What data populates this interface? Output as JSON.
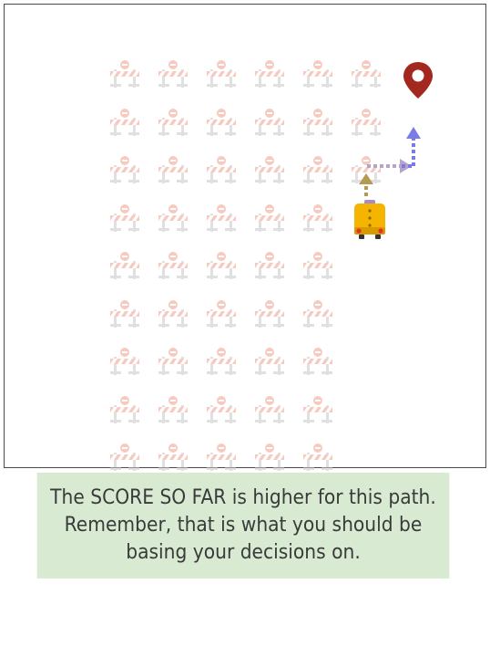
{
  "game": {
    "grid_columns": 6,
    "grid_rows": 9,
    "barrier_rows": [
      [
        1,
        1,
        1,
        1,
        1,
        1
      ],
      [
        1,
        1,
        1,
        1,
        1,
        1
      ],
      [
        1,
        1,
        1,
        1,
        1,
        1
      ],
      [
        1,
        1,
        1,
        1,
        1,
        0
      ],
      [
        1,
        1,
        1,
        1,
        1,
        0
      ],
      [
        1,
        1,
        1,
        1,
        1,
        0
      ],
      [
        1,
        1,
        1,
        1,
        1,
        0
      ],
      [
        1,
        1,
        1,
        1,
        1,
        0
      ],
      [
        1,
        1,
        1,
        1,
        1,
        0
      ]
    ],
    "icons": {
      "obstacle": "road-barrier-icon",
      "goal": "map-pin-icon",
      "vehicle": "school-bus-icon"
    },
    "colors": {
      "barrier": "#f2a08c",
      "barrier_legs": "#c8c8c8",
      "goal_pin": "#a3281f",
      "bus": "#f5b400",
      "arrow_up_from_bus": "#b59a55",
      "arrow_right": "#b9a3c8",
      "arrow_up_to_goal": "#7b7be8",
      "hint_background": "#d9ead3"
    }
  },
  "hint": {
    "text": "The SCORE SO FAR is higher for this path. Remember, that is what you should be basing your decisions on."
  }
}
